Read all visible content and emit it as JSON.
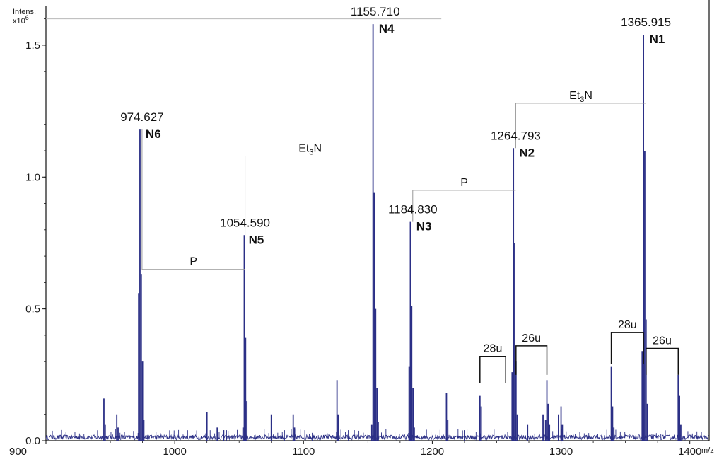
{
  "chart_data": {
    "type": "line",
    "ylabel": "Intens.",
    "ylabel_scale": "x10",
    "ylabel_scale_exp": "6",
    "xlabel": "m/z",
    "xlim": [
      900,
      1415
    ],
    "ylim": [
      0,
      1.65
    ],
    "x_ticks": [
      {
        "value": 900,
        "label": "900"
      },
      {
        "value": 1000,
        "label": "1000"
      },
      {
        "value": 1100,
        "label": "1100"
      },
      {
        "value": 1200,
        "label": "1200"
      },
      {
        "value": 1300,
        "label": "1300"
      },
      {
        "value": 1400,
        "label": "1400"
      }
    ],
    "y_ticks": [
      {
        "value": 0,
        "label": "0.0"
      },
      {
        "value": 0.5,
        "label": "0.5"
      },
      {
        "value": 1.0,
        "label": "1.0"
      },
      {
        "value": 1.5,
        "label": "1.5"
      }
    ],
    "grid": false,
    "color": "#2b2f86",
    "labeled_peaks": [
      {
        "mz": 974.627,
        "mz_label": "974.627",
        "name": "N6",
        "intensity": 1.18
      },
      {
        "mz": 1054.59,
        "mz_label": "1054.590",
        "name": "N5",
        "intensity": 0.78
      },
      {
        "mz": 1155.71,
        "mz_label": "1155.710",
        "name": "N4",
        "intensity": 1.58
      },
      {
        "mz": 1184.83,
        "mz_label": "1184.830",
        "name": "N3",
        "intensity": 0.83
      },
      {
        "mz": 1264.793,
        "mz_label": "1264.793",
        "name": "N2",
        "intensity": 1.11
      },
      {
        "mz": 1365.915,
        "mz_label": "1365.915",
        "name": "N1",
        "intensity": 1.54
      }
    ],
    "peaks": [
      [
        945,
        0.16
      ],
      [
        946,
        0.06
      ],
      [
        955,
        0.1
      ],
      [
        956,
        0.05
      ],
      [
        972,
        0.56
      ],
      [
        973,
        1.18
      ],
      [
        974,
        0.63
      ],
      [
        975,
        0.3
      ],
      [
        976,
        0.08
      ],
      [
        1025,
        0.11
      ],
      [
        1033,
        0.05
      ],
      [
        1038,
        0.04
      ],
      [
        1040,
        0.04
      ],
      [
        1053,
        0.05
      ],
      [
        1054,
        0.78
      ],
      [
        1055,
        0.39
      ],
      [
        1056,
        0.15
      ],
      [
        1075,
        0.1
      ],
      [
        1085,
        0.04
      ],
      [
        1092,
        0.1
      ],
      [
        1093,
        0.05
      ],
      [
        1107,
        0.03
      ],
      [
        1126,
        0.23
      ],
      [
        1127,
        0.1
      ],
      [
        1135,
        0.04
      ],
      [
        1153,
        0.06
      ],
      [
        1154,
        1.58
      ],
      [
        1155,
        0.94
      ],
      [
        1156,
        0.5
      ],
      [
        1157,
        0.2
      ],
      [
        1158,
        0.07
      ],
      [
        1182,
        0.28
      ],
      [
        1183,
        0.83
      ],
      [
        1184,
        0.51
      ],
      [
        1185,
        0.2
      ],
      [
        1186,
        0.05
      ],
      [
        1211,
        0.18
      ],
      [
        1212,
        0.08
      ],
      [
        1225,
        0.04
      ],
      [
        1237,
        0.17
      ],
      [
        1238,
        0.13
      ],
      [
        1262,
        0.26
      ],
      [
        1263,
        1.11
      ],
      [
        1264,
        0.75
      ],
      [
        1265,
        0.3
      ],
      [
        1266,
        0.1
      ],
      [
        1274,
        0.06
      ],
      [
        1286,
        0.1
      ],
      [
        1288,
        0.08
      ],
      [
        1289,
        0.23
      ],
      [
        1290,
        0.14
      ],
      [
        1291,
        0.06
      ],
      [
        1298,
        0.1
      ],
      [
        1300,
        0.13
      ],
      [
        1301,
        0.06
      ],
      [
        1339,
        0.28
      ],
      [
        1340,
        0.13
      ],
      [
        1341,
        0.05
      ],
      [
        1363,
        0.34
      ],
      [
        1364,
        1.54
      ],
      [
        1365,
        1.1
      ],
      [
        1366,
        0.46
      ],
      [
        1367,
        0.14
      ],
      [
        1391,
        0.25
      ],
      [
        1392,
        0.17
      ],
      [
        1393,
        0.06
      ]
    ],
    "annotations": [
      {
        "type": "bracket",
        "from_mz": 974.627,
        "to_mz": 1054.59,
        "y": 0.65,
        "text": "P"
      },
      {
        "type": "bracket",
        "from_mz": 1054.59,
        "to_mz": 1155.71,
        "y": 1.08,
        "text": "Et",
        "sub": "3",
        "text_after": "N"
      },
      {
        "type": "bracket",
        "from_mz": 1184.83,
        "to_mz": 1264.793,
        "y": 0.95,
        "text": "P"
      },
      {
        "type": "bracket",
        "from_mz": 1264.793,
        "to_mz": 1365.915,
        "y": 1.28,
        "text": "Et",
        "sub": "3",
        "text_after": "N"
      },
      {
        "type": "bracket",
        "from_mz": 1237,
        "to_mz": 1257,
        "y": 0.32,
        "drop": 0.1,
        "text": "28u"
      },
      {
        "type": "bracket",
        "from_mz": 1265,
        "to_mz": 1289,
        "y": 0.36,
        "drop": 0.11,
        "text": "26u"
      },
      {
        "type": "bracket",
        "from_mz": 1339,
        "to_mz": 1364,
        "y": 0.41,
        "drop": 0.12,
        "text": "28u"
      },
      {
        "type": "bracket",
        "from_mz": 1366,
        "to_mz": 1391,
        "y": 0.35,
        "drop": 0.1,
        "text": "26u"
      }
    ],
    "top_reference_line": {
      "from_mz": 900,
      "to_mz": 1207,
      "y": 1.6
    }
  }
}
